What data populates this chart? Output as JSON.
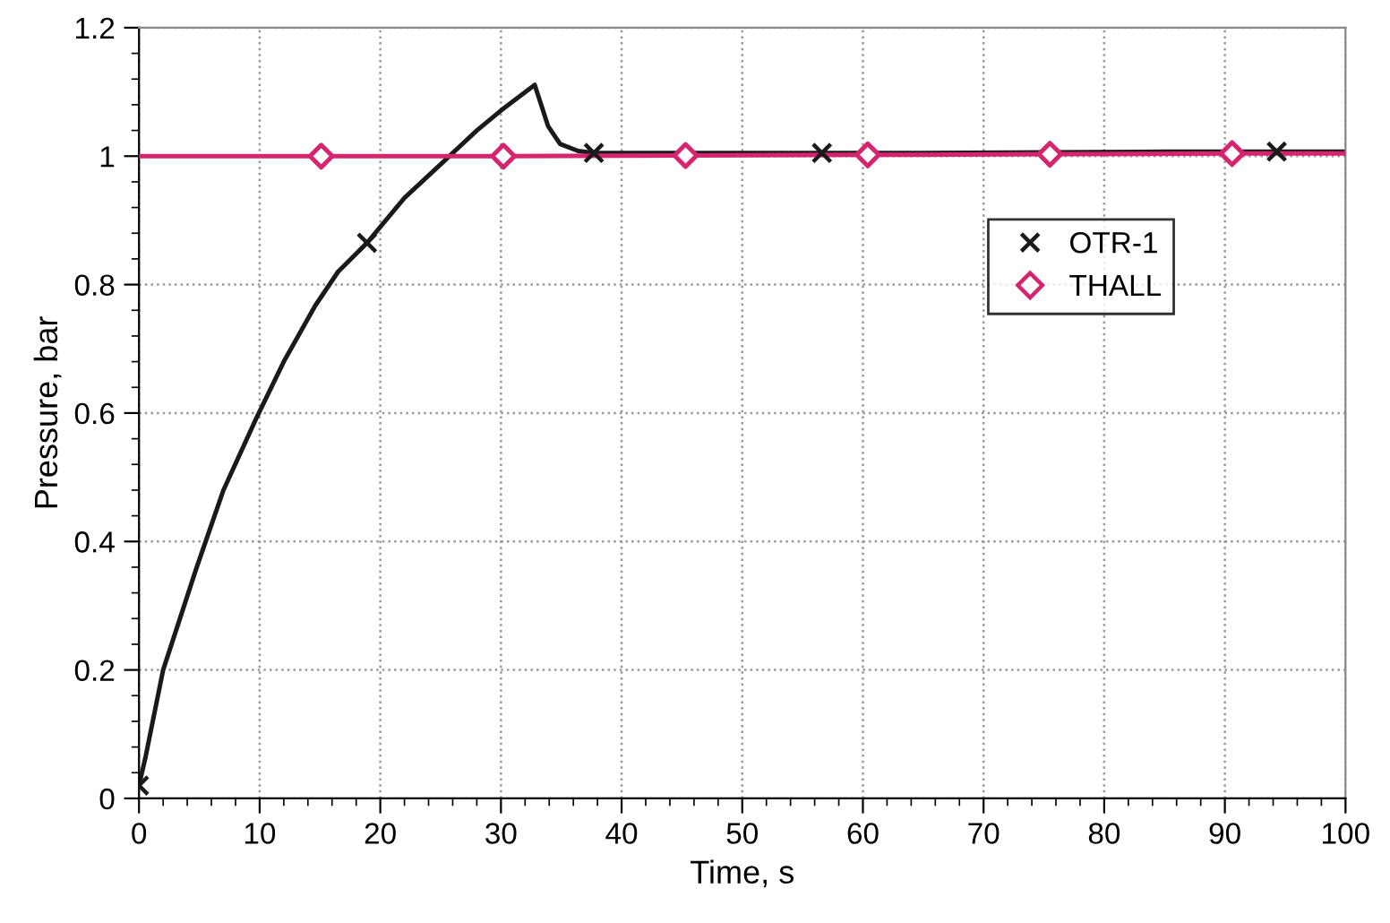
{
  "chart_data": {
    "type": "line",
    "xlabel": "Time, s",
    "ylabel": "Pressure, bar",
    "xlim": [
      0,
      100
    ],
    "ylim": [
      0,
      1.2
    ],
    "xticks": [
      0,
      10,
      20,
      30,
      40,
      50,
      60,
      70,
      80,
      90,
      100
    ],
    "yticks": [
      0,
      0.2,
      0.4,
      0.6,
      0.8,
      1,
      1.2
    ],
    "grid": true,
    "legend": "right",
    "series": [
      {
        "color": "#1a1a1a",
        "marker": "none",
        "x": [
          0,
          0.55,
          2,
          4.75,
          7,
          9.7,
          12,
          14.6,
          16.5,
          18.9,
          22,
          25.5,
          28,
          30,
          32.8,
          33.9,
          34.9,
          36.4,
          37.7,
          45,
          56.6,
          65,
          75.5,
          85,
          94.3,
          100
        ],
        "values": [
          0.02,
          0.065,
          0.2,
          0.358,
          0.48,
          0.591,
          0.68,
          0.767,
          0.82,
          0.865,
          0.935,
          0.996,
          1.04,
          1.071,
          1.111,
          1.047,
          1.019,
          1.008,
          1.005,
          1.005,
          1.005,
          1.005,
          1.006,
          1.007,
          1.007,
          1.007
        ]
      },
      {
        "type": "scatter",
        "name": "OTR-1",
        "color": "#1a1a1a",
        "marker": "cross",
        "x": [
          0,
          18.9,
          37.7,
          56.6,
          75.5,
          94.3
        ],
        "values": [
          0.02,
          0.865,
          1.005,
          1.005,
          null,
          1.007
        ]
      },
      {
        "color": "#d6256f",
        "marker": "none",
        "x": [
          0,
          15.1,
          30.2,
          45.3,
          60.4,
          75.5,
          90.6,
          100
        ],
        "values": [
          1.0,
          1.0,
          1.0,
          1.001,
          1.002,
          1.003,
          1.004,
          1.004
        ]
      },
      {
        "type": "scatter",
        "name": "THALL",
        "color": "#d6256f",
        "marker": "diamond",
        "x": [
          15.1,
          30.2,
          45.3,
          60.4,
          75.5,
          90.6
        ],
        "values": [
          1.0,
          1.0,
          1.001,
          1.002,
          1.003,
          1.004
        ]
      }
    ]
  }
}
